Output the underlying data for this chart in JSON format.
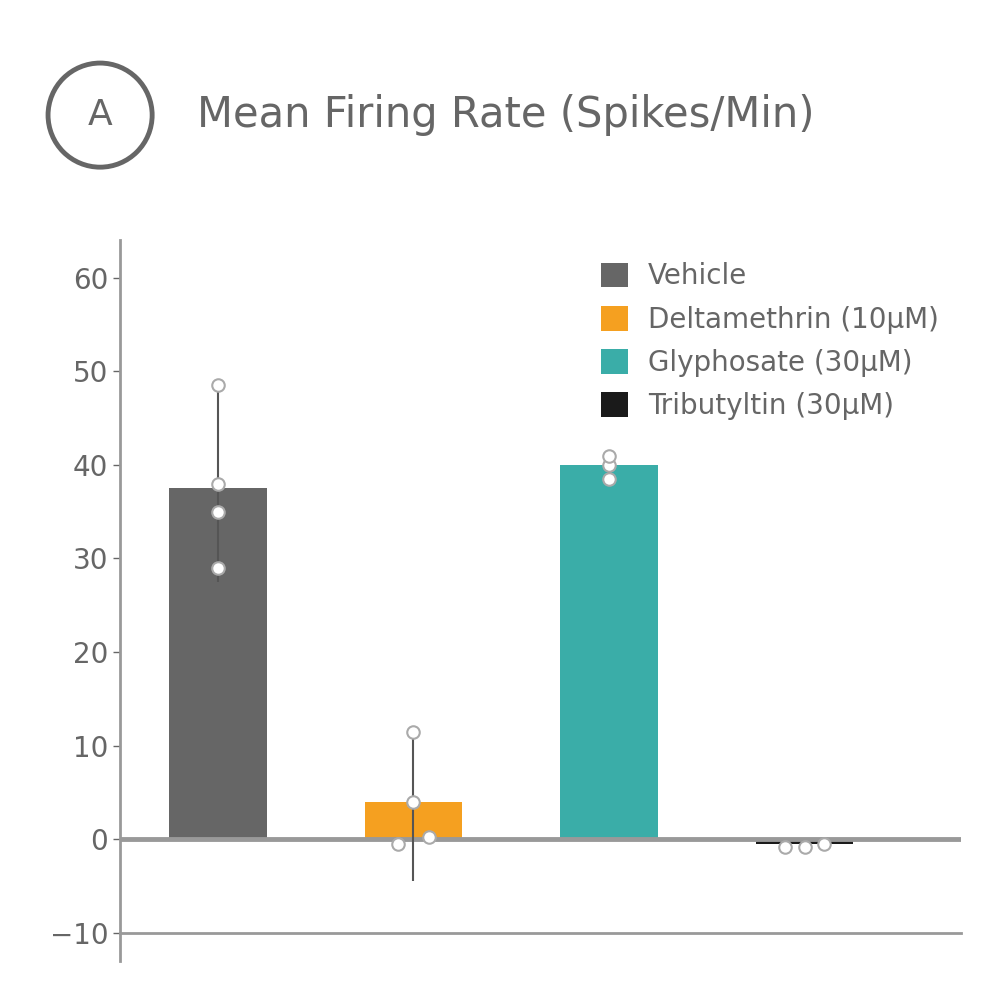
{
  "title": "Mean Firing Rate (Spikes/Min)",
  "panel_label": "A",
  "bar_names": [
    "Vehicle",
    "Deltamethrin (10μM)",
    "Glyphosate (30μM)",
    "Tributyltin (30μM)"
  ],
  "bar_means": [
    37.5,
    4.0,
    40.0,
    -0.5
  ],
  "bar_colors": [
    "#666666",
    "#F5A020",
    "#3AADA8",
    "#1a1a1a"
  ],
  "bar_positions": [
    1,
    2,
    3,
    4
  ],
  "bar_width": 0.5,
  "data_points": {
    "Vehicle": [
      29.0,
      35.0,
      38.0,
      48.5
    ],
    "Deltamethrin": [
      -0.5,
      0.2,
      4.0,
      11.5
    ],
    "Glyphosate": [
      38.5,
      40.0,
      41.0
    ],
    "Tributyltin": [
      -0.8,
      -0.8,
      -0.5
    ]
  },
  "dp_offsets": {
    "Vehicle": [
      0,
      0,
      0,
      0
    ],
    "Deltamethrin": [
      -0.08,
      0.08,
      0,
      0
    ],
    "Glyphosate": [
      0,
      0,
      0
    ],
    "Tributyltin": [
      -0.1,
      0.0,
      0.1
    ]
  },
  "error_bars": {
    "Vehicle": {
      "lower": 10.0,
      "upper": 11.0
    },
    "Deltamethrin": {
      "lower": 8.5,
      "upper": 7.5
    },
    "Glyphosate": {
      "lower": 1.5,
      "upper": 1.5
    },
    "Tributyltin": {
      "lower": 0.3,
      "upper": 0.3
    }
  },
  "ylim": [
    -13,
    64
  ],
  "yticks": [
    -10,
    0,
    10,
    20,
    30,
    40,
    50,
    60
  ],
  "axis_color": "#999999",
  "zero_line_color": "#999999",
  "zero_line_lw": 3.5,
  "background_color": "#ffffff",
  "title_fontsize": 30,
  "tick_fontsize": 20,
  "legend_fontsize": 20,
  "circle_label_fontsize": 26,
  "title_color": "#666666",
  "tick_color": "#666666",
  "legend_color": "#666666",
  "marker_edge_color": "#aaaaaa",
  "marker_face_color": "#ffffff",
  "marker_size": 9,
  "marker_lw": 1.5,
  "err_color": "#555555",
  "err_lw": 1.5
}
